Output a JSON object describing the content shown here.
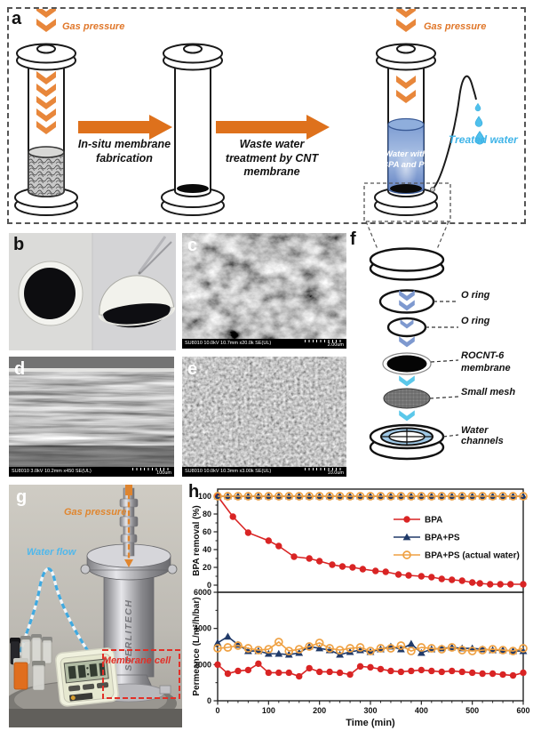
{
  "colors": {
    "arrow_orange": "#DE711C",
    "chevron_orange": "#E8873B",
    "periwinkle_chevron": "#7E99CF",
    "cyan_chevron": "#5BC8EA",
    "treated_water_cyan": "#3FB4E8",
    "series_red": "#D92424",
    "series_navy": "#203A69",
    "series_orange": "#EFA143",
    "membrane_cell_red": "#E23028"
  },
  "panel_a": {
    "label": "a",
    "gas_pressure_left": "Gas pressure",
    "gas_pressure_right": "Gas pressure",
    "step1_label": "In-situ membrane fabrication",
    "step2_label": "Waste water treatment by CNT membrane",
    "feed_water_label": "Water with BPA and PS",
    "treated_water_label": "Treated water"
  },
  "panel_b": {
    "label": "b"
  },
  "panel_c": {
    "label": "c",
    "sem_caption": "SU8010 10.0kV 10.7mm x20.0k SE(UL)",
    "scale_label": "2.00um"
  },
  "panel_d": {
    "label": "d",
    "sem_caption": "SU8010 3.0kV 10.2mm x450 SE(UL)",
    "scale_label": "100um"
  },
  "panel_e": {
    "label": "e",
    "sem_caption": "SU8010 10.0kV 10.3mm x3.00k SE(UL)",
    "scale_label": "10.0um"
  },
  "panel_f": {
    "label": "f",
    "component_labels": {
      "oring_top": "O ring",
      "oring_bottom": "O ring",
      "membrane": "ROCNT-6 membrane",
      "mesh": "Small mesh",
      "channels": "Water channels"
    }
  },
  "panel_g": {
    "label": "g",
    "gas_pressure": "Gas pressure",
    "water_flow": "Water flow",
    "membrane_cell": "Membrane cell",
    "device_brand": "STERLITECH"
  },
  "panel_h": {
    "label": "h"
  },
  "chart_data": {
    "type": "line",
    "xlabel": "Time (min)",
    "xlim": [
      0,
      600
    ],
    "xticks": [
      0,
      100,
      200,
      300,
      400,
      500,
      600
    ],
    "x_minor_step": 20,
    "grid": false,
    "legend_position": "top-panel-right",
    "panels": [
      {
        "ylabel": "BPA removal (%)",
        "ylim": [
          -8,
          108
        ],
        "yticks": [
          0,
          20,
          40,
          60,
          80,
          100
        ],
        "y_minor_step": 10,
        "legend": true,
        "series": [
          {
            "name": "BPA",
            "color": "#D92424",
            "marker": "circle",
            "x": [
              0,
              30,
              60,
              100,
              120,
              150,
              180,
              200,
              225,
              245,
              265,
              285,
              310,
              330,
              355,
              375,
              400,
              420,
              440,
              460,
              480,
              500,
              515,
              535,
              555,
              575,
              600
            ],
            "y": [
              100,
              77,
              59,
              50,
              44,
              32,
              30,
              27,
              23,
              21,
              20,
              18,
              16,
              15,
              12,
              11,
              10,
              9,
              7,
              6,
              5,
              3,
              2,
              1,
              1,
              1,
              1
            ]
          },
          {
            "name": "BPA+PS",
            "color": "#203A69",
            "marker": "triangle",
            "x_start": 0,
            "x_step": 20,
            "y": [
              100,
              100,
              100,
              100,
              100,
              100,
              100,
              100,
              100,
              100,
              100,
              100,
              100,
              100,
              100,
              100,
              100,
              100,
              100,
              100,
              100,
              100,
              100,
              100,
              100,
              100,
              100,
              100,
              100,
              100,
              100
            ]
          },
          {
            "name": "BPA+PS (actual water)",
            "color": "#EFA143",
            "marker": "open-circle",
            "x_start": 0,
            "x_step": 20,
            "y": [
              100,
              100,
              100,
              100,
              100,
              100,
              100,
              100,
              100,
              100,
              100,
              100,
              100,
              100,
              100,
              100,
              100,
              100,
              100,
              100,
              100,
              100,
              100,
              100,
              100,
              100,
              100,
              100,
              100,
              100,
              100
            ]
          }
        ]
      },
      {
        "ylabel": "Permeance (L/m²/h/bar)",
        "ylim": [
          0,
          6000
        ],
        "yticks": [
          0,
          2000,
          4000,
          6000
        ],
        "y_minor_step": 1000,
        "legend": false,
        "series": [
          {
            "name": "BPA",
            "color": "#D92424",
            "marker": "circle",
            "x_start": 0,
            "x_step": 20,
            "y": [
              2000,
              1500,
              1650,
              1700,
              2050,
              1550,
              1550,
              1550,
              1350,
              1800,
              1600,
              1600,
              1550,
              1450,
              1900,
              1850,
              1750,
              1650,
              1600,
              1650,
              1700,
              1650,
              1600,
              1650,
              1600,
              1550,
              1500,
              1500,
              1450,
              1400,
              1550
            ]
          },
          {
            "name": "BPA+PS",
            "color": "#203A69",
            "marker": "triangle",
            "x_start": 0,
            "x_step": 20,
            "y": [
              3200,
              3550,
              3100,
              2750,
              2750,
              2600,
              2600,
              2550,
              2650,
              3000,
              2900,
              2800,
              2550,
              2700,
              2800,
              2700,
              2850,
              3000,
              2850,
              3150,
              2650,
              2850,
              2900,
              2950,
              2900,
              2900,
              2850,
              2800,
              2800,
              2750,
              2750
            ]
          },
          {
            "name": "BPA+PS (actual water)",
            "color": "#EFA143",
            "marker": "open-circle",
            "x_start": 0,
            "x_step": 20,
            "y": [
              2900,
              2950,
              3050,
              2900,
              2800,
              2850,
              3250,
              2750,
              2850,
              3000,
              3200,
              2900,
              2800,
              2900,
              2950,
              2750,
              2900,
              2900,
              3050,
              2750,
              2950,
              2900,
              2850,
              2950,
              2800,
              2750,
              2800,
              2850,
              2800,
              2750,
              2900
            ]
          }
        ]
      }
    ]
  }
}
